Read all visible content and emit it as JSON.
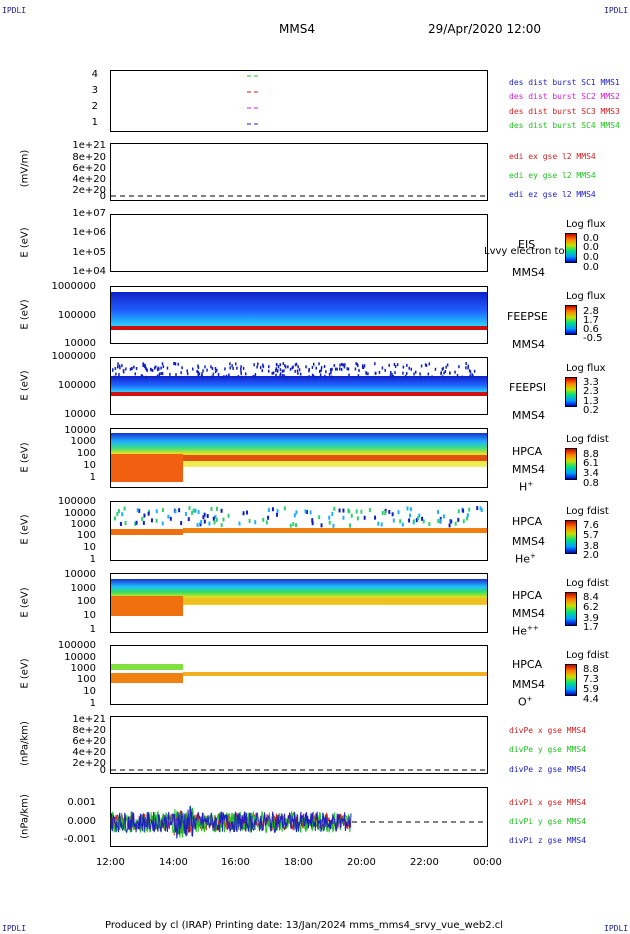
{
  "corners": {
    "tl": "IPDLI",
    "tr": "IPDLI",
    "bl": "IPDLI",
    "br": "IPDLI"
  },
  "header": {
    "title": "MMS4",
    "datetime": "29/Apr/2020 12:00"
  },
  "footer": "Produced by cl (IRAP)   Printing date: 13/Jan/2024   mms_mms4_srvy_vue_web2.cl",
  "x_ticks": [
    "12:00",
    "14:00",
    "16:00",
    "18:00",
    "20:00",
    "22:00",
    "00:00"
  ],
  "panels": [
    {
      "id": "burst",
      "ylabel": "",
      "yticks": [
        "4",
        "3",
        "2",
        "1"
      ],
      "legend": [
        {
          "text": "des dist burst SC1 MMS1",
          "color": "#2020c0"
        },
        {
          "text": "des dist burst SC2 MMS2",
          "color": "#d020d0"
        },
        {
          "text": "des dist burst SC3 MMS3",
          "color": "#d02020"
        },
        {
          "text": "des dist burst SC4 MMS4",
          "color": "#20c020"
        }
      ]
    },
    {
      "id": "edi",
      "ylabel": "(mV/m)",
      "yticks": [
        "1e+21",
        "8e+20",
        "6e+20",
        "4e+20",
        "2e+20",
        "0"
      ],
      "legend": [
        {
          "text": "edi ex gse l2 MMS4",
          "color": "#d02020"
        },
        {
          "text": "edi ey gse l2 MMS4",
          "color": "#20c020"
        },
        {
          "text": "edi ez gse l2 MMS4",
          "color": "#2020c0"
        }
      ]
    },
    {
      "id": "eis",
      "ylabel": "E (eV)",
      "yticks": [
        "1e+07",
        "1e+06",
        "1e+05",
        "1e+04"
      ],
      "rlabels": [
        "EIS",
        "MMS4"
      ],
      "overlay": "Lvvy electron to",
      "cbar": {
        "title": "Log flux",
        "values": [
          "0.0",
          "0.0",
          "0.0",
          "0.0"
        ]
      }
    },
    {
      "id": "feepse",
      "ylabel": "E (eV)",
      "yticks": [
        "1000000",
        "100000",
        "10000"
      ],
      "rlabels": [
        "FEEPSE",
        "MMS4"
      ],
      "cbar": {
        "title": "Log flux",
        "values": [
          "2.8",
          "1.7",
          "0.6",
          "-0.5"
        ]
      }
    },
    {
      "id": "feepsi",
      "ylabel": "E (eV)",
      "yticks": [
        "1000000",
        "100000",
        "10000"
      ],
      "rlabels": [
        "FEEPSI",
        "MMS4"
      ],
      "cbar": {
        "title": "Log flux",
        "values": [
          "3.3",
          "2.3",
          "1.3",
          "0.2"
        ]
      }
    },
    {
      "id": "hpca_h",
      "ylabel": "E (eV)",
      "yticks": [
        "10000",
        "1000",
        "100",
        "10",
        "1"
      ],
      "rlabels": [
        "HPCA",
        "MMS4"
      ],
      "species": "H",
      "charge": "+",
      "cbar": {
        "title": "Log fdist",
        "values": [
          "8.8",
          "6.1",
          "3.4",
          "0.8"
        ]
      }
    },
    {
      "id": "hpca_he",
      "ylabel": "E (eV)",
      "yticks": [
        "100000",
        "10000",
        "1000",
        "100",
        "10",
        "1"
      ],
      "rlabels": [
        "HPCA",
        "MMS4"
      ],
      "species": "He",
      "charge": "+",
      "cbar": {
        "title": "Log fdist",
        "values": [
          "7.6",
          "5.7",
          "3.8",
          "2.0"
        ]
      }
    },
    {
      "id": "hpca_hepp",
      "ylabel": "E (eV)",
      "yticks": [
        "10000",
        "1000",
        "100",
        "10",
        "1"
      ],
      "rlabels": [
        "HPCA",
        "MMS4"
      ],
      "species": "He",
      "charge": "++",
      "cbar": {
        "title": "Log fdist",
        "values": [
          "8.4",
          "6.2",
          "3.9",
          "1.7"
        ]
      }
    },
    {
      "id": "hpca_o",
      "ylabel": "E (eV)",
      "yticks": [
        "100000",
        "10000",
        "1000",
        "100",
        "10",
        "1"
      ],
      "rlabels": [
        "HPCA",
        "MMS4"
      ],
      "species": "O",
      "charge": "+",
      "cbar": {
        "title": "Log fdist",
        "values": [
          "8.8",
          "7.3",
          "5.9",
          "4.4"
        ]
      }
    },
    {
      "id": "divpe",
      "ylabel": "(nPa/km)",
      "yticks": [
        "1e+21",
        "8e+20",
        "6e+20",
        "4e+20",
        "2e+20",
        "0"
      ],
      "legend": [
        {
          "text": "divPe x gse MMS4",
          "color": "#d02020"
        },
        {
          "text": "divPe y gse MMS4",
          "color": "#20c020"
        },
        {
          "text": "divPe z gse MMS4",
          "color": "#2020c0"
        }
      ]
    },
    {
      "id": "divpi",
      "ylabel": "(nPa/km)",
      "yticks": [
        "0.001",
        "0.000",
        "-0.001"
      ],
      "legend": [
        {
          "text": "divPi x gse MMS4",
          "color": "#d02020"
        },
        {
          "text": "divPi y gse MMS4",
          "color": "#20c020"
        },
        {
          "text": "divPi z gse MMS4",
          "color": "#2020c0"
        }
      ]
    }
  ],
  "chart_data": {
    "type": "heatmap",
    "title": "MMS4",
    "x_range": [
      "12:00",
      "00:00"
    ],
    "series": [
      {
        "name": "divPi x gse MMS4",
        "color": "#d02020",
        "x_extent": [
          "12:00",
          "19:40"
        ],
        "range": [
          -0.0009,
          0.001
        ]
      },
      {
        "name": "divPi y gse MMS4",
        "color": "#20c020",
        "x_extent": [
          "12:00",
          "19:40"
        ],
        "range": [
          -0.0012,
          0.0012
        ]
      },
      {
        "name": "divPi z gse MMS4",
        "color": "#2020c0",
        "x_extent": [
          "12:00",
          "19:40"
        ],
        "range": [
          -0.0008,
          0.0015
        ]
      }
    ]
  }
}
